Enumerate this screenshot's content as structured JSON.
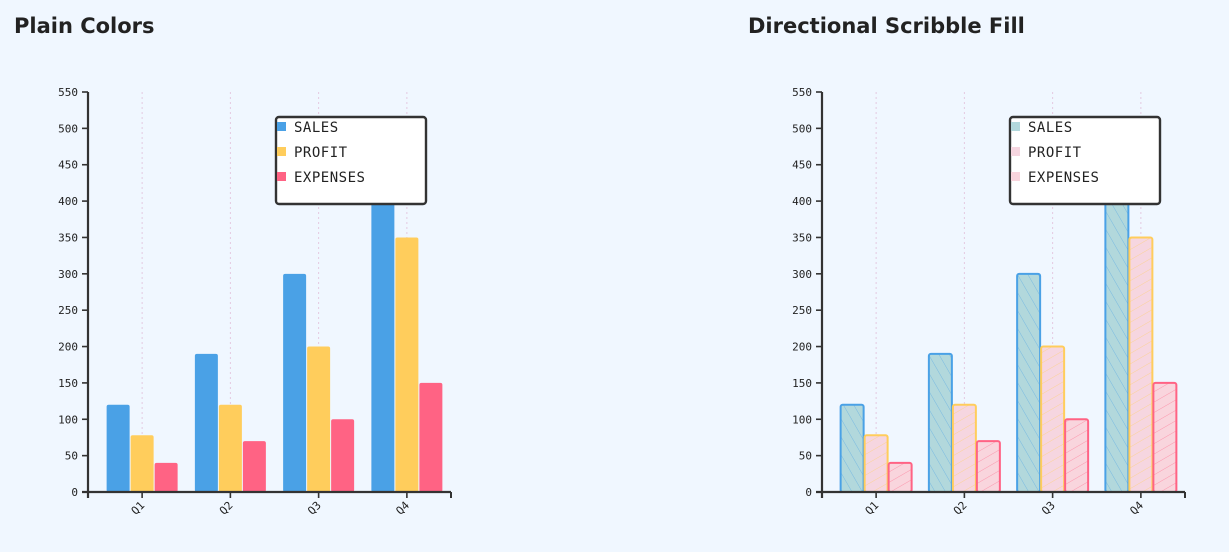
{
  "charts": [
    {
      "title": "Plain Colors",
      "style": "plain",
      "chart_data": {
        "type": "bar",
        "categories": [
          "Q1",
          "Q2",
          "Q3",
          "Q4"
        ],
        "series": [
          {
            "name": "SALES",
            "values": [
              120,
              190,
              300,
              500
            ],
            "color": "#4aa1e6"
          },
          {
            "name": "PROFIT",
            "values": [
              78,
              120,
              200,
              350
            ],
            "color": "#ffcd5c"
          },
          {
            "name": "EXPENSES",
            "values": [
              40,
              70,
              100,
              150
            ],
            "color": "#ff6384"
          }
        ],
        "ylim": [
          0,
          550
        ],
        "yticks": [
          0,
          50,
          100,
          150,
          200,
          250,
          300,
          350,
          400,
          450,
          500,
          550
        ],
        "grid": "vertical dotted",
        "legend_position": "top-right"
      }
    },
    {
      "title": "Directional Scribble Fill",
      "style": "scribble",
      "chart_data": {
        "type": "bar",
        "categories": [
          "Q1",
          "Q2",
          "Q3",
          "Q4"
        ],
        "series": [
          {
            "name": "SALES",
            "values": [
              120,
              190,
              300,
              500
            ],
            "color": "#4aa1e6",
            "fill": "#b2d8dc"
          },
          {
            "name": "PROFIT",
            "values": [
              78,
              120,
              200,
              350
            ],
            "color": "#ffcd5c",
            "fill": "#f6d6e0"
          },
          {
            "name": "EXPENSES",
            "values": [
              40,
              70,
              100,
              150
            ],
            "color": "#ff6384",
            "fill": "#f9d5dd"
          }
        ],
        "ylim": [
          0,
          550
        ],
        "yticks": [
          0,
          50,
          100,
          150,
          200,
          250,
          300,
          350,
          400,
          450,
          500,
          550
        ],
        "grid": "vertical dotted",
        "legend_position": "top-right"
      }
    }
  ]
}
